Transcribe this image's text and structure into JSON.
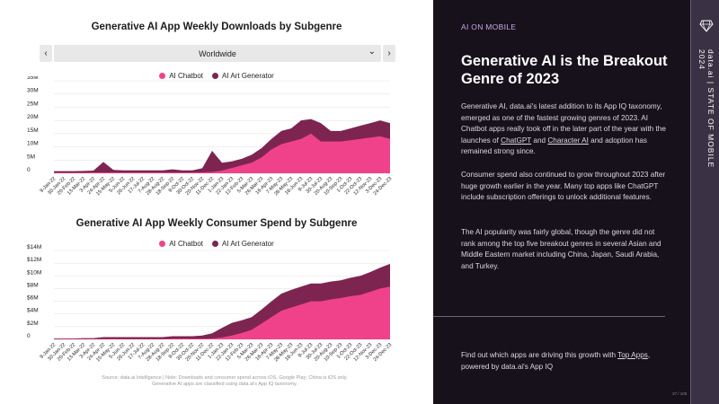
{
  "left": {
    "chart1_title": "Generative AI App Weekly Downloads by Subgenre",
    "chart2_title": "Generative AI App Weekly Consumer Spend by Subgenre",
    "filter": {
      "value": "Worldwide",
      "prev": "‹",
      "next": "›",
      "chevron": "⌄"
    },
    "legend": {
      "a": "AI Chatbot",
      "b": "AI Art Generator"
    },
    "source_line1": "Source: data.ai Intelligence | Note: Downloads and consumer spend across iOS, Google Play; China is iOS only.",
    "source_line2": "Generative AI apps are classified using data.ai's App IQ taxonomy."
  },
  "right": {
    "tag": "AI ON MOBILE",
    "headline": "Generative AI is the Breakout Genre of 2023",
    "p1_start": "Generative AI, data.ai's latest addition to its App IQ taxonomy, emerged as one of the fastest growing genres of 2023. AI Chatbot apps really took off in the later part of the year with the launches of ",
    "p1_link1": "ChatGPT",
    "p1_mid": " and ",
    "p1_link2": "Character AI",
    "p1_end": " and adoption has remained strong since.",
    "p2": "Consumer spend also continued to grow throughout 2023 after huge growth earlier in the year. Many top apps like ChatGPT include subscription offerings to unlock additional features.",
    "p3": "The AI popularity was fairly global, though the genre did not rank among the top five breakout genres in several Asian and Middle Eastern market including China, Japan, Saudi Arabia, and Turkey.",
    "footer_start": "Find out which apps are driving this growth with ",
    "footer_link": "Top Apps",
    "footer_end": ", powered by data.ai's App IQ"
  },
  "sidebar": {
    "vertical_text": "data.ai | STATE OF MOBILE 2024",
    "icon": "gem-icon"
  },
  "page_number": "37 / 100",
  "colors": {
    "chatbot": "#f0428a",
    "art": "#7d2550",
    "dark_bg": "#16111a",
    "sidebar_bg": "#3a3244",
    "accent": "#c9a6e8"
  },
  "chart_data": [
    {
      "type": "area",
      "stacked": true,
      "title": "Generative AI App Weekly Downloads by Subgenre",
      "ylim": [
        0,
        35
      ],
      "y_ticks": [
        "0",
        "5M",
        "10M",
        "15M",
        "20M",
        "25M",
        "30M",
        "35M"
      ],
      "x_ticks": [
        "9-Jan-22",
        "30-Jan-22",
        "20-Feb-22",
        "13-Mar-22",
        "3-Apr-22",
        "24-Apr-22",
        "15-May-22",
        "5-Jun-22",
        "26-Jun-22",
        "17-Jul-22",
        "7-Aug-22",
        "28-Aug-22",
        "18-Sep-22",
        "9-Oct-22",
        "30-Oct-22",
        "20-Nov-22",
        "11-Dec-22",
        "1-Jan-23",
        "22-Jan-23",
        "12-Feb-23",
        "5-Mar-23",
        "26-Mar-23",
        "16-Apr-23",
        "7-May-23",
        "28-May-23",
        "18-Jun-23",
        "9-Jul-23",
        "30-Jul-23",
        "20-Aug-23",
        "10-Sep-23",
        "1-Oct-23",
        "22-Oct-23",
        "12-Nov-23",
        "3-Dec-23",
        "24-Dec-23"
      ],
      "series": [
        {
          "name": "AI Chatbot",
          "values": [
            0.2,
            0.2,
            0.2,
            0.2,
            0.3,
            0.3,
            0.3,
            0.3,
            0.3,
            0.3,
            0.3,
            0.3,
            0.3,
            0.3,
            0.3,
            0.4,
            0.5,
            1,
            2,
            3,
            4,
            6,
            9,
            11,
            12,
            13,
            15,
            12,
            12,
            12,
            12.5,
            13,
            13.5,
            14,
            13
          ]
        },
        {
          "name": "AI Art Generator",
          "values": [
            0.6,
            0.6,
            0.6,
            0.7,
            0.7,
            4,
            1,
            0.8,
            0.8,
            0.8,
            0.8,
            0.8,
            1.2,
            0.8,
            0.8,
            1.5,
            8,
            3,
            2.5,
            2.5,
            3,
            3.5,
            4,
            5,
            5,
            7,
            5.5,
            7,
            4,
            4,
            4.5,
            5,
            5.5,
            6,
            6
          ]
        }
      ]
    },
    {
      "type": "area",
      "stacked": true,
      "title": "Generative AI App Weekly Consumer Spend by Subgenre",
      "ylim": [
        0,
        14
      ],
      "y_ticks": [
        "0",
        "$2M",
        "$4M",
        "$6M",
        "$8M",
        "$10M",
        "$12M",
        "$14M"
      ],
      "x_ticks": [
        "9-Jan-22",
        "30-Jan-22",
        "20-Feb-22",
        "13-Mar-22",
        "3-Apr-22",
        "24-Apr-22",
        "15-May-22",
        "5-Jun-22",
        "26-Jun-22",
        "17-Jul-22",
        "7-Aug-22",
        "28-Aug-22",
        "18-Sep-22",
        "9-Oct-22",
        "30-Oct-22",
        "20-Nov-22",
        "11-Dec-22",
        "1-Jan-23",
        "22-Jan-23",
        "12-Feb-23",
        "5-Mar-23",
        "26-Mar-23",
        "16-Apr-23",
        "7-May-23",
        "28-May-23",
        "18-Jun-23",
        "9-Jul-23",
        "30-Jul-23",
        "20-Aug-23",
        "10-Sep-23",
        "1-Oct-23",
        "22-Oct-23",
        "12-Nov-23",
        "3-Dec-23",
        "24-Dec-23"
      ],
      "series": [
        {
          "name": "AI Chatbot",
          "values": [
            0.05,
            0.05,
            0.05,
            0.05,
            0.05,
            0.05,
            0.05,
            0.05,
            0.05,
            0.05,
            0.05,
            0.05,
            0.1,
            0.1,
            0.1,
            0.1,
            0.15,
            0.3,
            0.6,
            1,
            1.5,
            2.5,
            3.5,
            4.5,
            5,
            5.5,
            6,
            6,
            6.3,
            6.5,
            6.8,
            7,
            7.5,
            8,
            8.3
          ]
        },
        {
          "name": "AI Art Generator",
          "values": [
            0.1,
            0.1,
            0.1,
            0.15,
            0.15,
            0.3,
            0.3,
            0.3,
            0.3,
            0.3,
            0.3,
            0.3,
            0.4,
            0.4,
            0.4,
            0.5,
            0.8,
            1.5,
            2,
            2,
            2,
            2.2,
            2.5,
            2.7,
            2.8,
            2.8,
            2.8,
            2.8,
            2.8,
            2.8,
            2.9,
            3,
            3.1,
            3.3,
            3.6
          ]
        }
      ]
    }
  ]
}
